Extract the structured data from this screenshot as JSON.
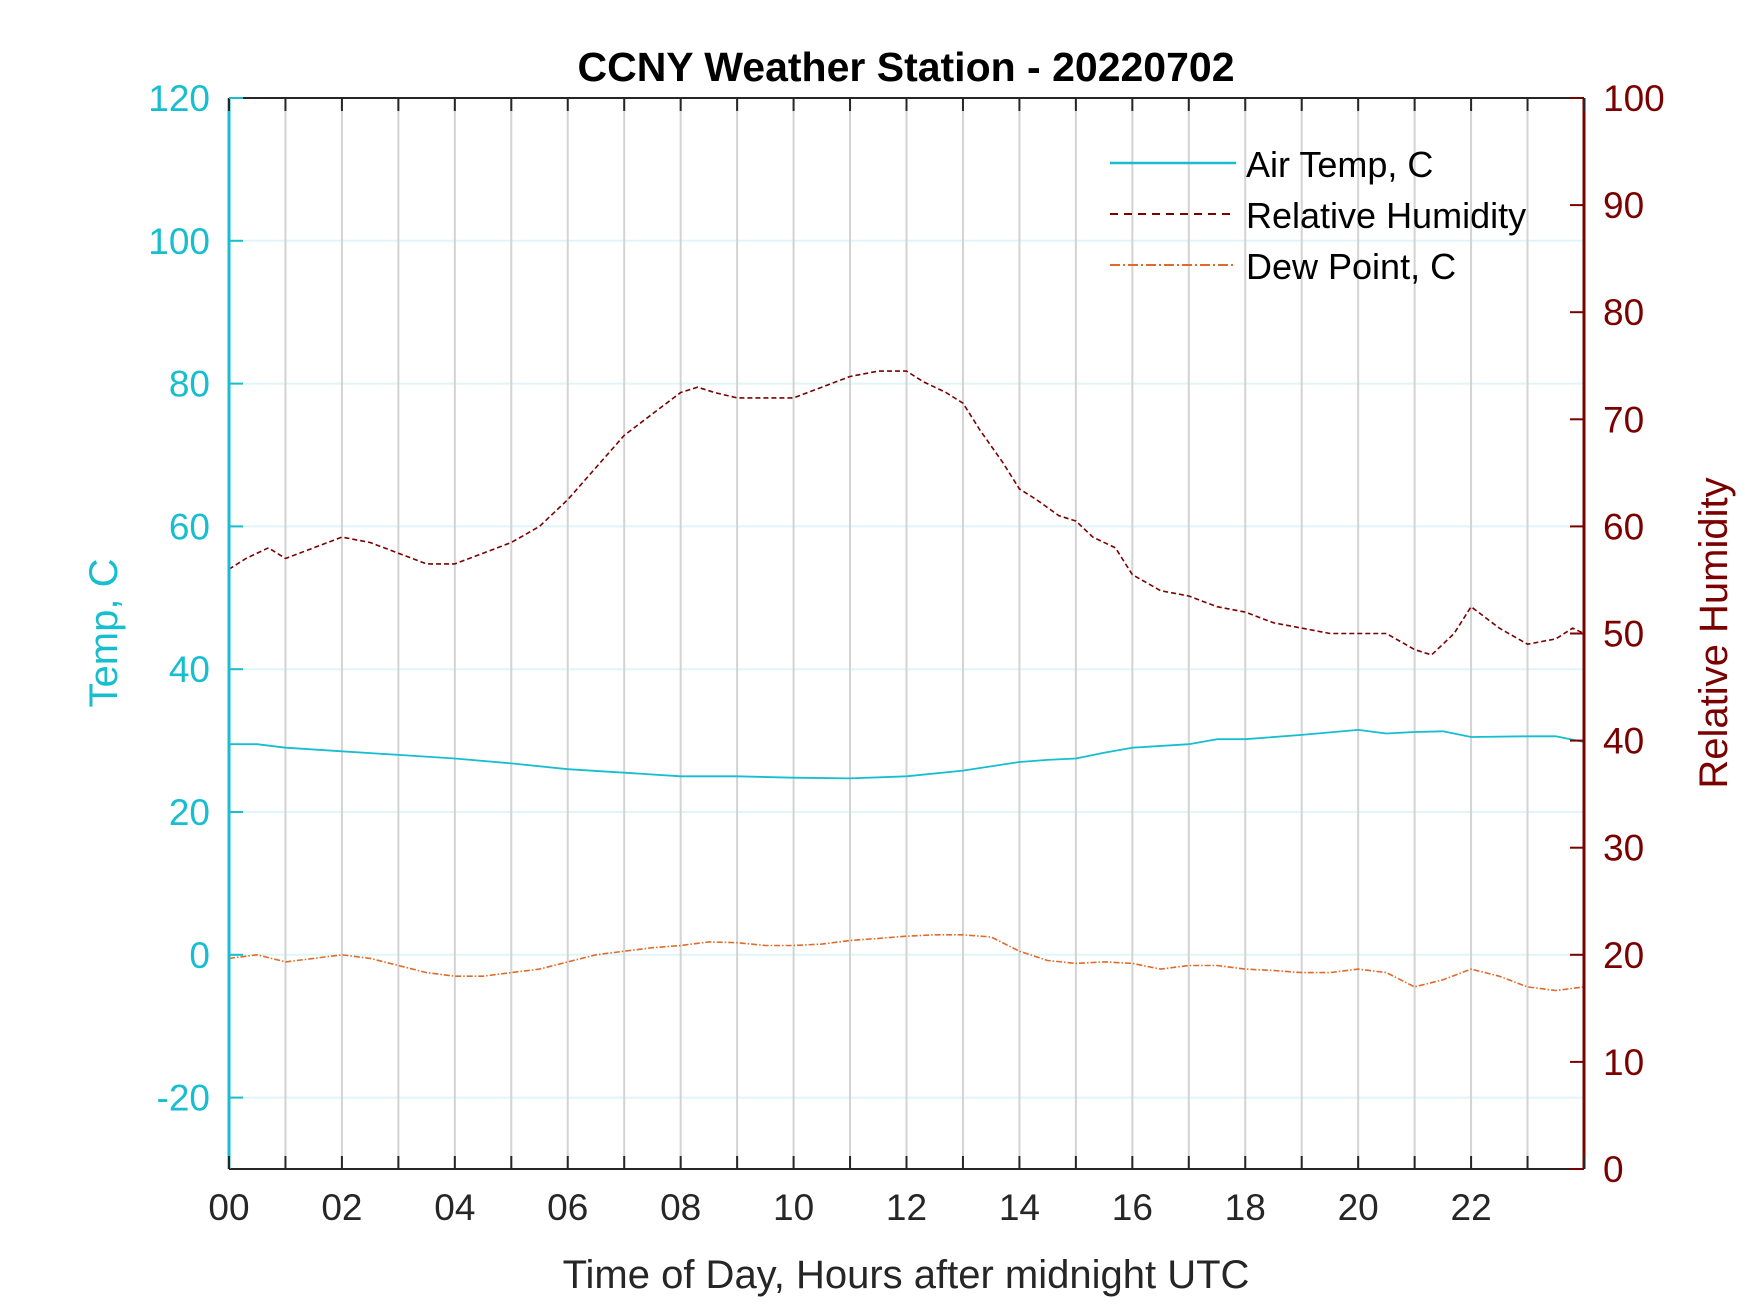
{
  "chart_data": {
    "type": "line",
    "title": "CCNY Weather Station - 20220702",
    "xlabel": "Time of Day, Hours after midnight UTC",
    "ylabel_left": "Temp, C",
    "ylabel_right": "Relative Humidity",
    "xlim": [
      0,
      24
    ],
    "ylim_left": [
      -30,
      120
    ],
    "ylim_right": [
      0,
      100
    ],
    "x_ticks": [
      0,
      2,
      4,
      6,
      8,
      10,
      12,
      14,
      16,
      18,
      20,
      22
    ],
    "x_tick_labels": [
      "00",
      "02",
      "04",
      "06",
      "08",
      "10",
      "12",
      "14",
      "16",
      "18",
      "20",
      "22"
    ],
    "y_left_ticks": [
      -20,
      0,
      20,
      40,
      60,
      80,
      100,
      120
    ],
    "y_right_ticks": [
      0,
      10,
      20,
      30,
      40,
      50,
      60,
      70,
      80,
      90,
      100
    ],
    "grid": "on",
    "legend_position": "top-right",
    "colors": {
      "air_temp": "#17becf",
      "relative_humidity": "#7b0000",
      "dew_point": "#e06a2a",
      "left_axis": "#17becf",
      "right_axis": "#7b0000",
      "vgrid": "#d3d3d3",
      "hgrid": "#dff5f8"
    },
    "series": [
      {
        "name": "Air Temp, C",
        "axis": "left",
        "style": "solid",
        "x": [
          0,
          0.5,
          1,
          2,
          3,
          4,
          5,
          6,
          7,
          8,
          9,
          10,
          11,
          12,
          13,
          14,
          14.5,
          15,
          15.5,
          16,
          17,
          17.5,
          18,
          19,
          20,
          20.5,
          21,
          21.5,
          22,
          23,
          23.5,
          24
        ],
        "y": [
          29.5,
          29.5,
          29,
          28.5,
          28,
          27.5,
          26.8,
          26,
          25.5,
          25,
          25,
          24.8,
          24.7,
          25,
          25.8,
          27,
          27.3,
          27.5,
          28.3,
          29,
          29.5,
          30.2,
          30.2,
          30.8,
          31.5,
          31,
          31.2,
          31.3,
          30.5,
          30.6,
          30.6,
          29.8
        ]
      },
      {
        "name": "Relative Humidity",
        "axis": "right",
        "style": "dashed",
        "x": [
          0,
          0.3,
          0.7,
          1,
          1.5,
          2,
          2.5,
          3,
          3.5,
          4,
          4.5,
          5,
          5.5,
          6,
          6.5,
          7,
          7.5,
          8,
          8.3,
          8.6,
          9,
          9.5,
          10,
          10.5,
          11,
          11.5,
          12,
          12.3,
          12.7,
          13,
          13.3,
          13.7,
          14,
          14.3,
          14.7,
          15,
          15.3,
          15.7,
          16,
          16.5,
          17,
          17.5,
          18,
          18.5,
          19,
          19.5,
          20,
          20.5,
          21,
          21.3,
          21.7,
          22,
          22.5,
          23,
          23.5,
          23.8,
          24
        ],
        "y": [
          56,
          57,
          58,
          57,
          58,
          59,
          58.5,
          57.5,
          56.5,
          56.5,
          57.5,
          58.5,
          60,
          62.5,
          65.5,
          68.5,
          70.5,
          72.5,
          73,
          72.5,
          72,
          72,
          72,
          73,
          74,
          74.5,
          74.5,
          73.5,
          72.5,
          71.5,
          69,
          66,
          63.5,
          62.5,
          61,
          60.5,
          59,
          58,
          55.5,
          54,
          53.5,
          52.5,
          52,
          51,
          50.5,
          50,
          50,
          50,
          48.5,
          48,
          50,
          52.5,
          50.5,
          49,
          49.5,
          50.5,
          50
        ]
      },
      {
        "name": "Dew Point, C",
        "axis": "left",
        "style": "dashdot",
        "x": [
          0,
          0.5,
          1,
          1.5,
          2,
          2.5,
          3,
          3.5,
          4,
          4.5,
          5,
          5.5,
          6,
          6.5,
          7,
          7.5,
          8,
          8.5,
          9,
          9.5,
          10,
          10.5,
          11,
          11.5,
          12,
          12.5,
          13,
          13.5,
          14,
          14.5,
          15,
          15.5,
          16,
          16.5,
          17,
          17.5,
          18,
          18.5,
          19,
          19.5,
          20,
          20.5,
          21,
          21.5,
          22,
          22.5,
          23,
          23.5,
          24
        ],
        "y": [
          -0.5,
          0,
          -1,
          -0.5,
          0,
          -0.5,
          -1.5,
          -2.5,
          -3,
          -3,
          -2.5,
          -2,
          -1,
          0,
          0.5,
          1,
          1.3,
          1.8,
          1.7,
          1.3,
          1.3,
          1.5,
          2,
          2.3,
          2.6,
          2.8,
          2.8,
          2.5,
          0.5,
          -0.8,
          -1.2,
          -1,
          -1.2,
          -2,
          -1.5,
          -1.5,
          -2,
          -2.2,
          -2.5,
          -2.5,
          -2,
          -2.5,
          -4.5,
          -3.5,
          -2,
          -3,
          -4.5,
          -5,
          -4.5
        ]
      }
    ]
  }
}
